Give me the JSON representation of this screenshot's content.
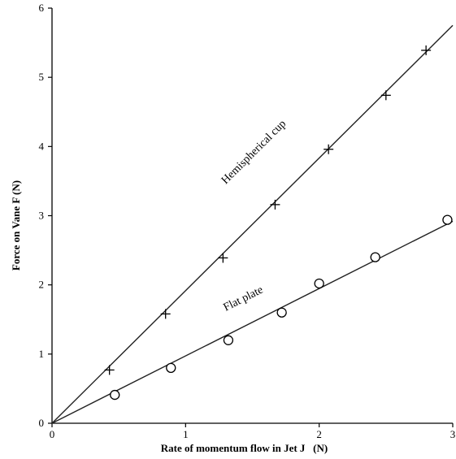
{
  "chart_data": {
    "type": "scatter",
    "xlabel": "Rate of momentum flow in Jet J   (N)",
    "ylabel": "Force on Vane F (N)",
    "xlim": [
      0,
      3
    ],
    "ylim": [
      0,
      6
    ],
    "xticks": [
      0,
      1,
      2,
      3
    ],
    "yticks": [
      0,
      1,
      2,
      3,
      4,
      5,
      6
    ],
    "grid": false,
    "series": [
      {
        "name": "Hemispherical cup",
        "marker": "plus",
        "points": [
          {
            "x": 0.43,
            "y": 0.77
          },
          {
            "x": 0.85,
            "y": 1.58
          },
          {
            "x": 1.28,
            "y": 2.39
          },
          {
            "x": 1.67,
            "y": 3.16
          },
          {
            "x": 2.07,
            "y": 3.96
          },
          {
            "x": 2.5,
            "y": 4.74
          },
          {
            "x": 2.8,
            "y": 5.39
          }
        ],
        "fit_line": {
          "x0": 0,
          "y0": 0,
          "x1": 3.0,
          "y1": 5.75
        },
        "label": {
          "x": 1.3,
          "y": 3.45,
          "angle_data_slope": 1.917
        }
      },
      {
        "name": "Flat plate",
        "marker": "circle",
        "points": [
          {
            "x": 0.47,
            "y": 0.41
          },
          {
            "x": 0.89,
            "y": 0.8
          },
          {
            "x": 1.32,
            "y": 1.2
          },
          {
            "x": 1.72,
            "y": 1.6
          },
          {
            "x": 2.0,
            "y": 2.02
          },
          {
            "x": 2.42,
            "y": 2.4
          },
          {
            "x": 2.96,
            "y": 2.94
          }
        ],
        "fit_line": {
          "x0": 0,
          "y0": 0,
          "x1": 3.0,
          "y1": 2.92
        },
        "label": {
          "x": 1.3,
          "y": 1.62,
          "angle_data_slope": 0.973
        }
      }
    ]
  },
  "colors": {
    "axis": "#000000",
    "line": "#222222",
    "marker": "#000000",
    "background": "#ffffff"
  }
}
